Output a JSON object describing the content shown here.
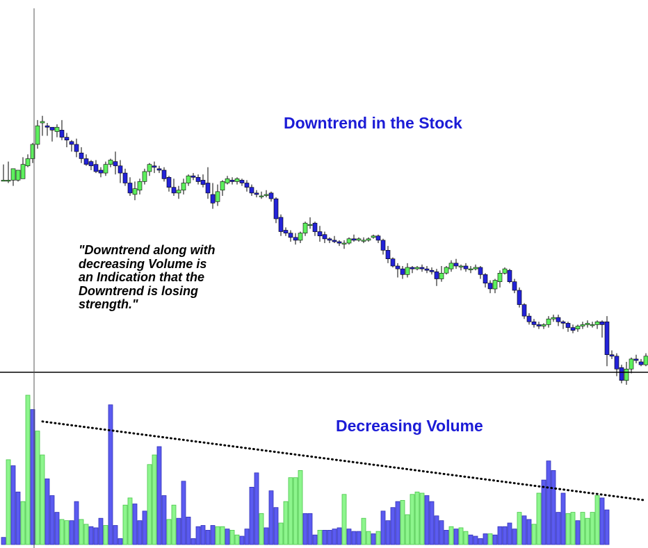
{
  "annotations": {
    "price_title": "Downtrend in the Stock",
    "volume_title": "Decreasing Volume",
    "quote": "\"Downtrend along with\ndecreasing  Volume is\nan Indication that the\nDowntrend is losing\nstrength.\""
  },
  "colors": {
    "up": "#5ef05e",
    "down": "#2323d8",
    "volume_up": "#8df58d",
    "volume_down": "#5b5bf0",
    "text": "#1b1bd6"
  },
  "chart_data": [
    {
      "type": "candlestick",
      "title": "Downtrend in the Stock",
      "up_color": "#5ef05e",
      "down_color": "#2323d8",
      "ohlc": [
        [
          0.27,
          0.27,
          0.38,
          0.27
        ],
        [
          0.27,
          0.27,
          0.4,
          0.25
        ],
        [
          0.27,
          0.35,
          0.35,
          0.23
        ],
        [
          0.27,
          0.34,
          0.3,
          0.26
        ],
        [
          0.28,
          0.38,
          0.43,
          0.34
        ],
        [
          0.37,
          0.42,
          0.45,
          0.36
        ],
        [
          0.42,
          0.52,
          0.53,
          0.39
        ],
        [
          0.52,
          0.65,
          0.69,
          0.49
        ],
        [
          0.67,
          0.68,
          0.72,
          0.58
        ],
        [
          0.65,
          0.64,
          0.67,
          0.58
        ],
        [
          0.64,
          0.62,
          0.63,
          0.54
        ],
        [
          0.61,
          0.64,
          0.66,
          0.57
        ],
        [
          0.62,
          0.57,
          0.69,
          0.55
        ],
        [
          0.57,
          0.55,
          0.6,
          0.5
        ],
        [
          0.54,
          0.52,
          0.55,
          0.47
        ],
        [
          0.52,
          0.47,
          0.56,
          0.43
        ],
        [
          0.46,
          0.42,
          0.5,
          0.39
        ],
        [
          0.42,
          0.38,
          0.45,
          0.37
        ],
        [
          0.4,
          0.37,
          0.41,
          0.34
        ],
        [
          0.38,
          0.33,
          0.41,
          0.32
        ],
        [
          0.34,
          0.32,
          0.36,
          0.29
        ],
        [
          0.32,
          0.38,
          0.4,
          0.3
        ],
        [
          0.38,
          0.41,
          0.42,
          0.36
        ],
        [
          0.4,
          0.37,
          0.47,
          0.31
        ],
        [
          0.37,
          0.32,
          0.41,
          0.25
        ],
        [
          0.32,
          0.25,
          0.35,
          0.23
        ],
        [
          0.25,
          0.18,
          0.29,
          0.16
        ],
        [
          0.17,
          0.21,
          0.26,
          0.13
        ],
        [
          0.2,
          0.26,
          0.28,
          0.17
        ],
        [
          0.26,
          0.33,
          0.35,
          0.24
        ],
        [
          0.33,
          0.38,
          0.39,
          0.3
        ],
        [
          0.37,
          0.36,
          0.4,
          0.32
        ],
        [
          0.35,
          0.34,
          0.37,
          0.32
        ],
        [
          0.34,
          0.28,
          0.36,
          0.26
        ],
        [
          0.29,
          0.22,
          0.3,
          0.19
        ],
        [
          0.22,
          0.18,
          0.28,
          0.16
        ],
        [
          0.18,
          0.2,
          0.23,
          0.14
        ],
        [
          0.2,
          0.25,
          0.28,
          0.17
        ],
        [
          0.25,
          0.3,
          0.31,
          0.23
        ],
        [
          0.3,
          0.29,
          0.32,
          0.27
        ],
        [
          0.29,
          0.26,
          0.31,
          0.24
        ],
        [
          0.27,
          0.24,
          0.31,
          0.22
        ],
        [
          0.25,
          0.18,
          0.36,
          0.14
        ],
        [
          0.17,
          0.11,
          0.25,
          0.07
        ],
        [
          0.12,
          0.19,
          0.24,
          0.09
        ],
        [
          0.2,
          0.26,
          0.27,
          0.16
        ],
        [
          0.25,
          0.28,
          0.3,
          0.24
        ],
        [
          0.27,
          0.26,
          0.29,
          0.24
        ],
        [
          0.26,
          0.28,
          0.29,
          0.24
        ],
        [
          0.27,
          0.25,
          0.28,
          0.23
        ],
        [
          0.25,
          0.22,
          0.27,
          0.19
        ],
        [
          0.22,
          0.18,
          0.24,
          0.16
        ],
        [
          0.18,
          0.17,
          0.2,
          0.15
        ],
        [
          0.16,
          0.16,
          0.19,
          0.14
        ],
        [
          0.17,
          0.17,
          0.2,
          0.15
        ],
        [
          0.18,
          0.14,
          0.19,
          0.12
        ],
        [
          0.14,
          0.0,
          0.15,
          -0.03
        ],
        [
          0.01,
          -0.09,
          0.03,
          -0.12
        ],
        [
          -0.08,
          -0.1,
          -0.06,
          -0.12
        ],
        [
          -0.1,
          -0.13,
          -0.08,
          -0.16
        ],
        [
          -0.13,
          -0.15,
          -0.1,
          -0.18
        ],
        [
          -0.15,
          -0.1,
          -0.09,
          -0.17
        ],
        [
          -0.1,
          -0.03,
          -0.02,
          -0.12
        ],
        [
          -0.04,
          -0.04,
          0.01,
          -0.07
        ],
        [
          -0.03,
          -0.09,
          -0.02,
          -0.12
        ],
        [
          -0.09,
          -0.12,
          -0.05,
          -0.16
        ],
        [
          -0.11,
          -0.14,
          -0.09,
          -0.17
        ],
        [
          -0.14,
          -0.15,
          -0.13,
          -0.17
        ],
        [
          -0.15,
          -0.16,
          -0.12,
          -0.17
        ],
        [
          -0.16,
          -0.17,
          -0.15,
          -0.19
        ],
        [
          -0.17,
          -0.17,
          -0.15,
          -0.21
        ],
        [
          -0.17,
          -0.14,
          -0.13,
          -0.18
        ],
        [
          -0.14,
          -0.15,
          -0.11,
          -0.16
        ],
        [
          -0.15,
          -0.14,
          -0.13,
          -0.16
        ],
        [
          -0.15,
          -0.15,
          -0.13,
          -0.17
        ],
        [
          -0.15,
          -0.14,
          -0.13,
          -0.16
        ],
        [
          -0.13,
          -0.12,
          -0.11,
          -0.14
        ],
        [
          -0.12,
          -0.15,
          -0.11,
          -0.17
        ],
        [
          -0.15,
          -0.22,
          -0.14,
          -0.25
        ],
        [
          -0.22,
          -0.28,
          -0.19,
          -0.31
        ],
        [
          -0.28,
          -0.33,
          -0.27,
          -0.34
        ],
        [
          -0.33,
          -0.35,
          -0.31,
          -0.41
        ],
        [
          -0.35,
          -0.39,
          -0.33,
          -0.42
        ],
        [
          -0.39,
          -0.34,
          -0.31,
          -0.41
        ],
        [
          -0.34,
          -0.35,
          -0.33,
          -0.38
        ],
        [
          -0.35,
          -0.34,
          -0.33,
          -0.36
        ],
        [
          -0.34,
          -0.35,
          -0.32,
          -0.37
        ],
        [
          -0.35,
          -0.36,
          -0.33,
          -0.38
        ],
        [
          -0.36,
          -0.37,
          -0.34,
          -0.39
        ],
        [
          -0.37,
          -0.42,
          -0.35,
          -0.47
        ],
        [
          -0.42,
          -0.38,
          -0.33,
          -0.44
        ],
        [
          -0.38,
          -0.34,
          -0.33,
          -0.39
        ],
        [
          -0.35,
          -0.31,
          -0.29,
          -0.37
        ],
        [
          -0.31,
          -0.33,
          -0.28,
          -0.35
        ],
        [
          -0.33,
          -0.33,
          -0.32,
          -0.36
        ],
        [
          -0.33,
          -0.35,
          -0.31,
          -0.37
        ],
        [
          -0.35,
          -0.35,
          -0.33,
          -0.38
        ],
        [
          -0.35,
          -0.34,
          -0.32,
          -0.36
        ],
        [
          -0.34,
          -0.39,
          -0.33,
          -0.42
        ],
        [
          -0.39,
          -0.45,
          -0.38,
          -0.48
        ],
        [
          -0.45,
          -0.49,
          -0.43,
          -0.52
        ],
        [
          -0.49,
          -0.43,
          -0.42,
          -0.52
        ],
        [
          -0.44,
          -0.38,
          -0.36,
          -0.48
        ],
        [
          -0.38,
          -0.35,
          -0.34,
          -0.39
        ],
        [
          -0.36,
          -0.44,
          -0.35,
          -0.45
        ],
        [
          -0.44,
          -0.5,
          -0.42,
          -0.52
        ],
        [
          -0.5,
          -0.6,
          -0.48,
          -0.62
        ],
        [
          -0.6,
          -0.68,
          -0.59,
          -0.7
        ],
        [
          -0.68,
          -0.72,
          -0.66,
          -0.74
        ],
        [
          -0.72,
          -0.74,
          -0.7,
          -0.76
        ],
        [
          -0.74,
          -0.75,
          -0.72,
          -0.77
        ],
        [
          -0.75,
          -0.74,
          -0.73,
          -0.77
        ],
        [
          -0.74,
          -0.7,
          -0.68,
          -0.76
        ],
        [
          -0.7,
          -0.69,
          -0.67,
          -0.72
        ],
        [
          -0.69,
          -0.72,
          -0.67,
          -0.75
        ],
        [
          -0.72,
          -0.73,
          -0.71,
          -0.77
        ],
        [
          -0.73,
          -0.76,
          -0.72,
          -0.79
        ],
        [
          -0.76,
          -0.78,
          -0.74,
          -0.8
        ],
        [
          -0.77,
          -0.75,
          -0.74,
          -0.79
        ],
        [
          -0.75,
          -0.74,
          -0.72,
          -0.77
        ],
        [
          -0.74,
          -0.73,
          -0.71,
          -0.76
        ],
        [
          -0.74,
          -0.74,
          -0.72,
          -0.76
        ],
        [
          -0.74,
          -0.72,
          -0.71,
          -0.77
        ],
        [
          -0.72,
          -0.74,
          -0.71,
          -0.83
        ],
        [
          -0.72,
          -0.95,
          -0.68,
          -1.03
        ],
        [
          -0.95,
          -0.96,
          -0.92,
          -0.98
        ],
        [
          -0.96,
          -1.05,
          -0.94,
          -1.1
        ],
        [
          -1.04,
          -1.13,
          -1.02,
          -1.15
        ],
        [
          -1.13,
          -1.05,
          -1.0,
          -1.16
        ],
        [
          -1.05,
          -0.98,
          -0.97,
          -1.08
        ],
        [
          -0.98,
          -0.99,
          -0.95,
          -1.01
        ],
        [
          -1.0,
          -1.02,
          -0.98,
          -1.03
        ],
        [
          -1.02,
          -0.96,
          -0.94,
          -1.03
        ],
        [
          -0.96,
          -0.81,
          -0.8,
          -0.99
        ],
        [
          -0.82,
          -0.74,
          -0.72,
          -0.84
        ],
        [
          -0.74,
          -0.69,
          -0.68,
          -0.76
        ],
        [
          -0.7,
          -0.75,
          -0.68,
          -0.82
        ]
      ]
    },
    {
      "type": "bar",
      "title": "Decreasing Volume",
      "up_color": "#8df58d",
      "down_color": "#5b5bf0",
      "values": [
        [
          0.06,
          "down"
        ],
        [
          0.71,
          "up"
        ],
        [
          0.66,
          "down"
        ],
        [
          0.44,
          "down"
        ],
        [
          0.36,
          "up"
        ],
        [
          1.25,
          "up"
        ],
        [
          1.13,
          "down"
        ],
        [
          0.95,
          "up"
        ],
        [
          0.75,
          "up"
        ],
        [
          0.55,
          "down"
        ],
        [
          0.41,
          "down"
        ],
        [
          0.27,
          "down"
        ],
        [
          0.21,
          "up"
        ],
        [
          0.2,
          "up"
        ],
        [
          0.2,
          "down"
        ],
        [
          0.36,
          "down"
        ],
        [
          0.21,
          "up"
        ],
        [
          0.17,
          "up"
        ],
        [
          0.15,
          "down"
        ],
        [
          0.14,
          "down"
        ],
        [
          0.22,
          "down"
        ],
        [
          0.16,
          "up"
        ],
        [
          1.17,
          "down"
        ],
        [
          0.16,
          "down"
        ],
        [
          0.05,
          "down"
        ],
        [
          0.33,
          "up"
        ],
        [
          0.39,
          "up"
        ],
        [
          0.34,
          "down"
        ],
        [
          0.2,
          "down"
        ],
        [
          0.28,
          "down"
        ],
        [
          0.67,
          "up"
        ],
        [
          0.75,
          "up"
        ],
        [
          0.82,
          "down"
        ],
        [
          0.41,
          "down"
        ],
        [
          0.21,
          "up"
        ],
        [
          0.33,
          "up"
        ],
        [
          0.22,
          "down"
        ],
        [
          0.53,
          "down"
        ],
        [
          0.23,
          "down"
        ],
        [
          0.05,
          "down"
        ],
        [
          0.15,
          "down"
        ],
        [
          0.16,
          "down"
        ],
        [
          0.12,
          "down"
        ],
        [
          0.16,
          "down"
        ],
        [
          0.15,
          "up"
        ],
        [
          0.15,
          "up"
        ],
        [
          0.13,
          "down"
        ],
        [
          0.12,
          "up"
        ],
        [
          0.08,
          "up"
        ],
        [
          0.07,
          "down"
        ],
        [
          0.13,
          "down"
        ],
        [
          0.48,
          "down"
        ],
        [
          0.6,
          "down"
        ],
        [
          0.26,
          "up"
        ],
        [
          0.14,
          "down"
        ],
        [
          0.45,
          "down"
        ],
        [
          0.31,
          "down"
        ],
        [
          0.18,
          "up"
        ],
        [
          0.36,
          "up"
        ],
        [
          0.56,
          "up"
        ],
        [
          0.56,
          "up"
        ],
        [
          0.62,
          "up"
        ],
        [
          0.26,
          "down"
        ],
        [
          0.26,
          "down"
        ],
        [
          0.08,
          "down"
        ],
        [
          0.12,
          "up"
        ],
        [
          0.12,
          "down"
        ],
        [
          0.12,
          "down"
        ],
        [
          0.13,
          "down"
        ],
        [
          0.14,
          "down"
        ],
        [
          0.42,
          "up"
        ],
        [
          0.13,
          "down"
        ],
        [
          0.11,
          "down"
        ],
        [
          0.11,
          "down"
        ],
        [
          0.22,
          "up"
        ],
        [
          0.11,
          "up"
        ],
        [
          0.09,
          "down"
        ],
        [
          0.11,
          "up"
        ],
        [
          0.28,
          "down"
        ],
        [
          0.2,
          "down"
        ],
        [
          0.31,
          "down"
        ],
        [
          0.36,
          "down"
        ],
        [
          0.37,
          "up"
        ],
        [
          0.25,
          "up"
        ],
        [
          0.42,
          "up"
        ],
        [
          0.44,
          "up"
        ],
        [
          0.43,
          "up"
        ],
        [
          0.41,
          "down"
        ],
        [
          0.36,
          "down"
        ],
        [
          0.24,
          "down"
        ],
        [
          0.2,
          "down"
        ],
        [
          0.12,
          "down"
        ],
        [
          0.15,
          "up"
        ],
        [
          0.13,
          "down"
        ],
        [
          0.14,
          "up"
        ],
        [
          0.11,
          "up"
        ],
        [
          0.08,
          "down"
        ],
        [
          0.07,
          "down"
        ],
        [
          0.05,
          "down"
        ],
        [
          0.09,
          "down"
        ],
        [
          0.09,
          "up"
        ],
        [
          0.08,
          "down"
        ],
        [
          0.15,
          "down"
        ],
        [
          0.15,
          "down"
        ],
        [
          0.18,
          "down"
        ],
        [
          0.13,
          "down"
        ],
        [
          0.27,
          "up"
        ],
        [
          0.24,
          "down"
        ],
        [
          0.21,
          "down"
        ],
        [
          0.17,
          "up"
        ],
        [
          0.43,
          "up"
        ],
        [
          0.54,
          "down"
        ],
        [
          0.7,
          "down"
        ],
        [
          0.62,
          "down"
        ],
        [
          0.27,
          "down"
        ],
        [
          0.43,
          "down"
        ],
        [
          0.26,
          "up"
        ],
        [
          0.27,
          "up"
        ],
        [
          0.2,
          "down"
        ],
        [
          0.27,
          "up"
        ],
        [
          0.22,
          "up"
        ],
        [
          0.27,
          "up"
        ],
        [
          0.41,
          "up"
        ],
        [
          0.39,
          "down"
        ],
        [
          0.29,
          "down"
        ]
      ],
      "trendline": {
        "style": "dotted",
        "from": [
          8,
          1.03
        ],
        "to": [
          132,
          0.37
        ]
      }
    }
  ]
}
